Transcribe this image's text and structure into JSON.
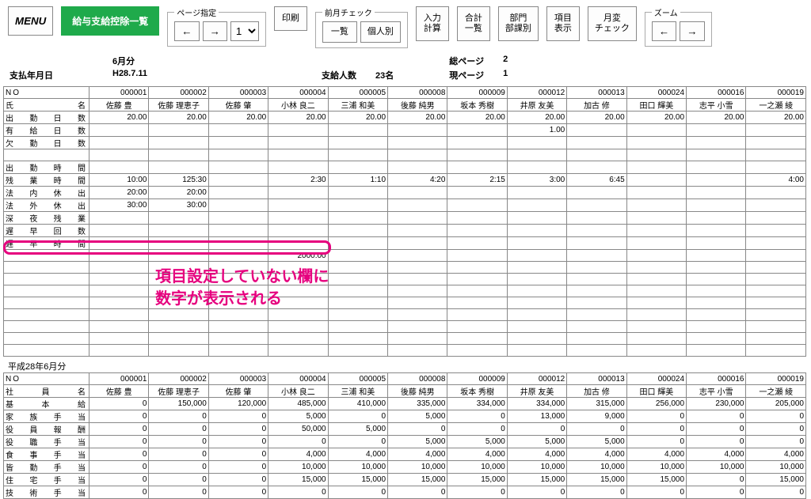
{
  "toolbar": {
    "menu": "MENU",
    "title_btn": "給与支給控除一覧",
    "page_group_legend": "ページ指定",
    "prev_arrow": "←",
    "next_arrow": "→",
    "page_value": "1",
    "print": "印刷",
    "prev_month_legend": "前月チェック",
    "prev_month_list": "一覧",
    "prev_month_indiv": "個人別",
    "input_calc": "入力\n計算",
    "total_list": "合計\n一覧",
    "dept_list": "部門\n部課別",
    "item_disp": "項目\n表示",
    "month_change": "月変\nチェック",
    "zoom_legend": "ズーム"
  },
  "info": {
    "pay_date_label": "支払年月日",
    "month": "6月分",
    "date": "H28.7.11",
    "count_label": "支給人数",
    "count_value": "23名",
    "total_page_label": "総ページ",
    "total_page_value": "2",
    "cur_page_label": "現ページ",
    "cur_page_value": "1"
  },
  "cols": [
    "000001",
    "000002",
    "000003",
    "000004",
    "000005",
    "000008",
    "000009",
    "000012",
    "000013",
    "000024",
    "000016",
    "000019"
  ],
  "names": [
    "佐藤 豊",
    "佐藤 理恵子",
    "佐藤 肇",
    "小林 良二",
    "三浦 和美",
    "後藤 純男",
    "坂本 秀樹",
    "井原 友美",
    "加古 修",
    "田口 輝美",
    "志平 小雪",
    "一之瀬 綾"
  ],
  "top_rows": [
    {
      "label": "NO",
      "vals": [
        "000001",
        "000002",
        "000003",
        "000004",
        "000005",
        "000008",
        "000009",
        "000012",
        "000013",
        "000024",
        "000016",
        "000019"
      ]
    },
    {
      "label": "氏　　　名",
      "vals": [
        "佐藤 豊",
        "佐藤 理恵子",
        "佐藤 肇",
        "小林 良二",
        "三浦 和美",
        "後藤 純男",
        "坂本 秀樹",
        "井原 友美",
        "加古 修",
        "田口 輝美",
        "志平 小雪",
        "一之瀬 綾"
      ]
    },
    {
      "label": "出 勤 日 数",
      "vals": [
        "20.00",
        "20.00",
        "20.00",
        "20.00",
        "20.00",
        "20.00",
        "20.00",
        "20.00",
        "20.00",
        "20.00",
        "20.00",
        "20.00"
      ]
    },
    {
      "label": "有 給 日 数",
      "vals": [
        "",
        "",
        "",
        "",
        "",
        "",
        "",
        "1.00",
        "",
        "",
        "",
        ""
      ]
    },
    {
      "label": "欠 勤 日 数",
      "vals": [
        "",
        "",
        "",
        "",
        "",
        "",
        "",
        "",
        "",
        "",
        "",
        ""
      ]
    },
    {
      "label": "",
      "vals": [
        "",
        "",
        "",
        "",
        "",
        "",
        "",
        "",
        "",
        "",
        "",
        ""
      ]
    },
    {
      "label": "出 勤 時 間",
      "vals": [
        "",
        "",
        "",
        "",
        "",
        "",
        "",
        "",
        "",
        "",
        "",
        ""
      ]
    },
    {
      "label": "残 業 時 間",
      "vals": [
        "10:00",
        "125:30",
        "",
        "2:30",
        "1:10",
        "4:20",
        "2:15",
        "3:00",
        "6:45",
        "",
        "",
        "4:00"
      ]
    },
    {
      "label": "法 内 休 出",
      "vals": [
        "20:00",
        "20:00",
        "",
        "",
        "",
        "",
        "",
        "",
        "",
        "",
        "",
        ""
      ]
    },
    {
      "label": "法 外 休 出",
      "vals": [
        "30:00",
        "30:00",
        "",
        "",
        "",
        "",
        "",
        "",
        "",
        "",
        "",
        ""
      ]
    },
    {
      "label": "深 夜 残 業",
      "vals": [
        "",
        "",
        "",
        "",
        "",
        "",
        "",
        "",
        "",
        "",
        "",
        ""
      ]
    },
    {
      "label": "遅 早 回 数",
      "vals": [
        "",
        "",
        "",
        "",
        "",
        "",
        "",
        "",
        "",
        "",
        "",
        ""
      ]
    },
    {
      "label": "遅 早 時 間",
      "vals": [
        "",
        "",
        "",
        "",
        "",
        "",
        "",
        "",
        "",
        "",
        "",
        ""
      ]
    },
    {
      "label": "",
      "vals": [
        "",
        "",
        "",
        "2000.00",
        "",
        "",
        "",
        "",
        "",
        "",
        "",
        ""
      ]
    },
    {
      "label": "",
      "vals": [
        "",
        "",
        "",
        "",
        "",
        "",
        "",
        "",
        "",
        "",
        "",
        ""
      ]
    },
    {
      "label": "",
      "vals": [
        "",
        "",
        "",
        "",
        "",
        "",
        "",
        "",
        "",
        "",
        "",
        ""
      ]
    },
    {
      "label": "",
      "vals": [
        "",
        "",
        "",
        "",
        "",
        "",
        "",
        "",
        "",
        "",
        "",
        ""
      ]
    },
    {
      "label": "",
      "vals": [
        "",
        "",
        "",
        "",
        "",
        "",
        "",
        "",
        "",
        "",
        "",
        ""
      ]
    },
    {
      "label": "",
      "vals": [
        "",
        "",
        "",
        "",
        "",
        "",
        "",
        "",
        "",
        "",
        "",
        ""
      ]
    },
    {
      "label": "",
      "vals": [
        "",
        "",
        "",
        "",
        "",
        "",
        "",
        "",
        "",
        "",
        "",
        ""
      ]
    },
    {
      "label": "",
      "vals": [
        "",
        "",
        "",
        "",
        "",
        "",
        "",
        "",
        "",
        "",
        "",
        ""
      ]
    },
    {
      "label": "",
      "vals": [
        "",
        "",
        "",
        "",
        "",
        "",
        "",
        "",
        "",
        "",
        "",
        ""
      ]
    }
  ],
  "section2_title": "平成28年6月分",
  "bottom_rows": [
    {
      "label": "NO",
      "vals": [
        "000001",
        "000002",
        "000003",
        "000004",
        "000005",
        "000008",
        "000009",
        "000012",
        "000013",
        "000024",
        "000016",
        "000019"
      ]
    },
    {
      "label": "社　員　名",
      "vals": [
        "佐藤 豊",
        "佐藤 理恵子",
        "佐藤 肇",
        "小林 良二",
        "三浦 和美",
        "後藤 純男",
        "坂本 秀樹",
        "井原 友美",
        "加古 修",
        "田口 輝美",
        "志平 小雪",
        "一之瀬 綾"
      ]
    },
    {
      "label": "基　本　給",
      "vals": [
        "0",
        "150,000",
        "120,000",
        "485,000",
        "410,000",
        "335,000",
        "334,000",
        "334,000",
        "315,000",
        "256,000",
        "230,000",
        "205,000"
      ]
    },
    {
      "label": "家 族 手 当",
      "vals": [
        "0",
        "0",
        "0",
        "5,000",
        "0",
        "5,000",
        "0",
        "13,000",
        "9,000",
        "0",
        "0",
        "0"
      ]
    },
    {
      "label": "役 員 報 酬",
      "vals": [
        "0",
        "0",
        "0",
        "50,000",
        "5,000",
        "0",
        "0",
        "0",
        "0",
        "0",
        "0",
        "0"
      ]
    },
    {
      "label": "役 職 手 当",
      "vals": [
        "0",
        "0",
        "0",
        "0",
        "0",
        "5,000",
        "5,000",
        "5,000",
        "5,000",
        "0",
        "0",
        "0"
      ]
    },
    {
      "label": "食 事 手 当",
      "vals": [
        "0",
        "0",
        "0",
        "4,000",
        "4,000",
        "4,000",
        "4,000",
        "4,000",
        "4,000",
        "4,000",
        "4,000",
        "4,000"
      ]
    },
    {
      "label": "皆 勤 手 当",
      "vals": [
        "0",
        "0",
        "0",
        "10,000",
        "10,000",
        "10,000",
        "10,000",
        "10,000",
        "10,000",
        "10,000",
        "10,000",
        "10,000"
      ]
    },
    {
      "label": "住 宅 手 当",
      "vals": [
        "0",
        "0",
        "0",
        "15,000",
        "15,000",
        "15,000",
        "15,000",
        "15,000",
        "15,000",
        "15,000",
        "0",
        "15,000"
      ]
    },
    {
      "label": "技 術 手 当",
      "vals": [
        "0",
        "0",
        "0",
        "0",
        "0",
        "0",
        "0",
        "0",
        "0",
        "0",
        "0",
        "0"
      ]
    }
  ],
  "annotation_text": "項目設定していない欄に\n数字が表示される",
  "colors": {
    "accent": "#e6007e",
    "green": "#1faa4b",
    "border": "#888888"
  }
}
